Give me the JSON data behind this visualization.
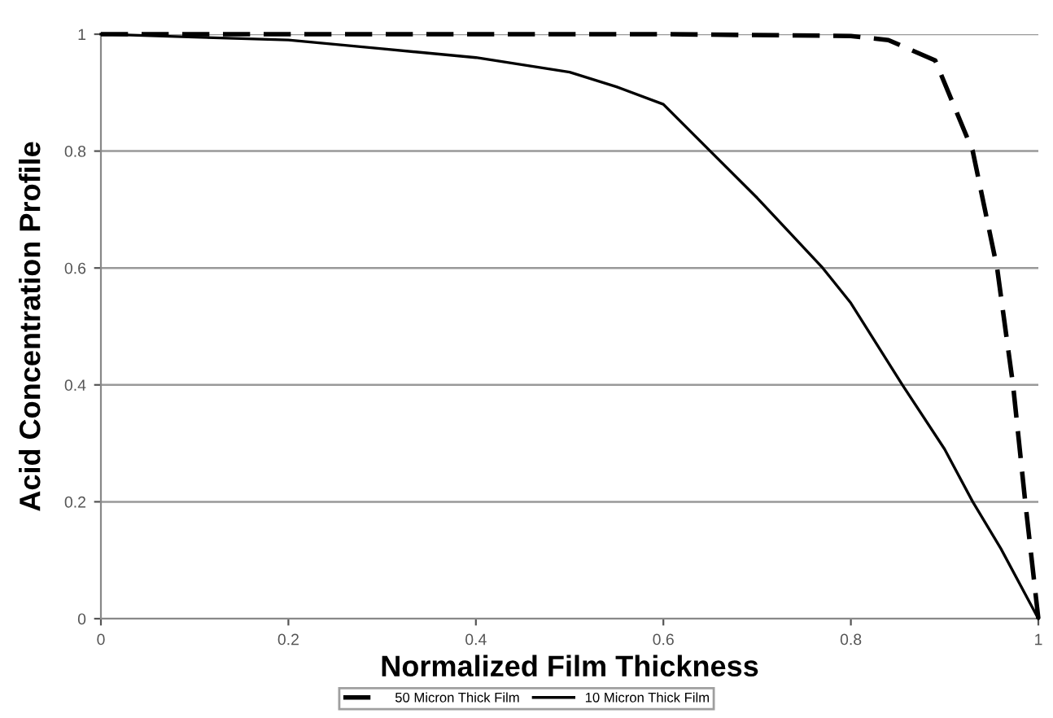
{
  "chart_data": {
    "type": "line",
    "xlabel": "Normalized Film Thickness",
    "ylabel": "Acid Concentration Profile",
    "xlim": [
      0,
      1
    ],
    "xticks": [
      0,
      0.2,
      0.4,
      0.6,
      0.8,
      1
    ],
    "ylim": [
      0,
      1
    ],
    "yticks": [
      0,
      0.2,
      0.4,
      0.6,
      0.8,
      1
    ],
    "grid": "y",
    "legend": "bottom",
    "marker": "none",
    "series": [
      {
        "name": "50 Micron Thick Film",
        "color": "#000000",
        "line_style": "dashed",
        "x": [
          0,
          0.2,
          0.4,
          0.6,
          0.8,
          0.84,
          0.89,
          0.93,
          0.956,
          0.973,
          0.986,
          1
        ],
        "values": [
          1,
          1,
          1,
          1,
          0.997,
          0.99,
          0.955,
          0.8,
          0.6,
          0.4,
          0.2,
          0
        ]
      },
      {
        "name": "10 Micron Thick Film",
        "color": "#000000",
        "line_style": "solid",
        "x": [
          0,
          0.1,
          0.2,
          0.3,
          0.4,
          0.5,
          0.55,
          0.6,
          0.65,
          0.7,
          0.77,
          0.8,
          0.855,
          0.9,
          0.93,
          0.96,
          1
        ],
        "values": [
          1,
          0.995,
          0.99,
          0.975,
          0.96,
          0.935,
          0.91,
          0.88,
          0.8,
          0.72,
          0.6,
          0.54,
          0.4,
          0.29,
          0.2,
          0.12,
          0
        ]
      }
    ]
  }
}
